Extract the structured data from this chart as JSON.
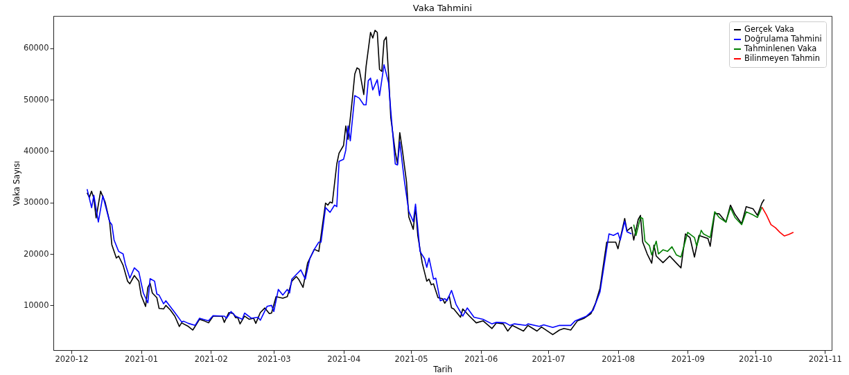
{
  "chart_data": {
    "type": "line",
    "title": "Vaka Tahmini",
    "xlabel": "Tarih",
    "ylabel": "Vaka Sayısı",
    "legend": "top right",
    "xlim": [
      "2020-11-23",
      "2021-11-04"
    ],
    "ylim": [
      1300,
      66300
    ],
    "xticks": [
      {
        "value": "2020-12-01",
        "label": "2020-12"
      },
      {
        "value": "2021-01-01",
        "label": "2021-01"
      },
      {
        "value": "2021-02-01",
        "label": "2021-02"
      },
      {
        "value": "2021-03-01",
        "label": "2021-03"
      },
      {
        "value": "2021-04-01",
        "label": "2021-04"
      },
      {
        "value": "2021-05-01",
        "label": "2021-05"
      },
      {
        "value": "2021-06-01",
        "label": "2021-06"
      },
      {
        "value": "2021-07-01",
        "label": "2021-07"
      },
      {
        "value": "2021-08-01",
        "label": "2021-08"
      },
      {
        "value": "2021-09-01",
        "label": "2021-09"
      },
      {
        "value": "2021-10-01",
        "label": "2021-10"
      },
      {
        "value": "2021-11-01",
        "label": "2021-11"
      }
    ],
    "yticks": [
      10000,
      20000,
      30000,
      40000,
      50000,
      60000
    ],
    "series": [
      {
        "name": "Gerçek Vaka",
        "color": "#000000",
        "x": [
          "2020-12-08",
          "2020-12-09",
          "2020-12-10",
          "2020-12-11",
          "2020-12-12",
          "2020-12-14",
          "2020-12-16",
          "2020-12-18",
          "2020-12-19",
          "2020-12-21",
          "2020-12-22",
          "2020-12-24",
          "2020-12-26",
          "2020-12-27",
          "2020-12-29",
          "2020-12-31",
          "2021-01-01",
          "2021-01-03",
          "2021-01-04",
          "2021-01-05",
          "2021-01-06",
          "2021-01-08",
          "2021-01-09",
          "2021-01-11",
          "2021-01-12",
          "2021-01-14",
          "2021-01-16",
          "2021-01-18",
          "2021-01-19",
          "2021-01-22",
          "2021-01-24",
          "2021-01-27",
          "2021-01-29",
          "2021-01-31",
          "2021-02-02",
          "2021-02-06",
          "2021-02-07",
          "2021-02-09",
          "2021-02-11",
          "2021-02-12",
          "2021-02-13",
          "2021-02-14",
          "2021-02-16",
          "2021-02-18",
          "2021-02-20",
          "2021-02-21",
          "2021-02-23",
          "2021-02-25",
          "2021-02-27",
          "2021-02-28",
          "2021-03-02",
          "2021-03-04",
          "2021-03-05",
          "2021-03-07",
          "2021-03-09",
          "2021-03-11",
          "2021-03-12",
          "2021-03-14",
          "2021-03-16",
          "2021-03-18",
          "2021-03-19",
          "2021-03-21",
          "2021-03-22",
          "2021-03-24",
          "2021-03-25",
          "2021-03-26",
          "2021-03-27",
          "2021-03-29",
          "2021-03-30",
          "2021-04-01",
          "2021-04-02",
          "2021-04-03",
          "2021-04-05",
          "2021-04-06",
          "2021-04-07",
          "2021-04-08",
          "2021-04-10",
          "2021-04-11",
          "2021-04-13",
          "2021-04-14",
          "2021-04-15",
          "2021-04-16",
          "2021-04-17",
          "2021-04-18",
          "2021-04-19",
          "2021-04-20",
          "2021-04-21",
          "2021-04-22",
          "2021-04-24",
          "2021-04-25",
          "2021-04-26",
          "2021-04-27",
          "2021-04-29",
          "2021-04-30",
          "2021-05-02",
          "2021-05-03",
          "2021-05-04",
          "2021-05-06",
          "2021-05-08",
          "2021-05-09",
          "2021-05-10",
          "2021-05-11",
          "2021-05-13",
          "2021-05-15",
          "2021-05-16",
          "2021-05-18",
          "2021-05-19",
          "2021-05-20",
          "2021-05-23",
          "2021-05-24",
          "2021-05-27",
          "2021-05-30",
          "2021-06-02",
          "2021-06-06",
          "2021-06-08",
          "2021-06-11",
          "2021-06-13",
          "2021-06-15",
          "2021-06-20",
          "2021-06-22",
          "2021-06-26",
          "2021-06-28",
          "2021-07-03",
          "2021-07-06",
          "2021-07-08",
          "2021-07-11",
          "2021-07-14",
          "2021-07-17",
          "2021-07-20",
          "2021-07-22",
          "2021-07-24",
          "2021-07-27",
          "2021-07-31",
          "2021-08-01",
          "2021-08-04",
          "2021-08-05",
          "2021-08-07",
          "2021-08-08",
          "2021-08-10",
          "2021-08-11",
          "2021-08-12",
          "2021-08-14",
          "2021-08-16",
          "2021-08-17",
          "2021-08-18",
          "2021-08-21",
          "2021-08-24",
          "2021-08-27",
          "2021-08-29",
          "2021-08-31",
          "2021-09-02",
          "2021-09-04",
          "2021-09-06",
          "2021-09-10",
          "2021-09-11",
          "2021-09-13",
          "2021-09-15",
          "2021-09-18",
          "2021-09-20",
          "2021-09-22",
          "2021-09-25",
          "2021-09-27",
          "2021-09-30",
          "2021-10-02",
          "2021-10-04",
          "2021-10-05"
        ],
        "values": [
          31900,
          31000,
          32200,
          30800,
          27000,
          32200,
          30100,
          26300,
          21800,
          19200,
          19600,
          17800,
          14700,
          14200,
          15800,
          14700,
          12000,
          9800,
          13500,
          14300,
          12400,
          11500,
          9400,
          9300,
          10000,
          9100,
          7900,
          5900,
          6600,
          5900,
          5200,
          7300,
          7000,
          6600,
          7900,
          7900,
          6700,
          8600,
          8400,
          7600,
          7600,
          6400,
          7900,
          7300,
          7500,
          6500,
          8600,
          9500,
          8400,
          8500,
          11700,
          11500,
          11400,
          11700,
          14700,
          15600,
          15100,
          13500,
          18200,
          20000,
          20900,
          20500,
          23600,
          29900,
          29500,
          30100,
          29900,
          37500,
          39600,
          41100,
          44900,
          42300,
          50500,
          55000,
          56200,
          55900,
          51000,
          56400,
          63100,
          62000,
          63500,
          63100,
          55900,
          55500,
          61500,
          62200,
          55000,
          46500,
          39800,
          37500,
          43600,
          40700,
          34000,
          27200,
          24800,
          29100,
          23600,
          18200,
          14700,
          15100,
          14000,
          14200,
          11500,
          11300,
          10400,
          11800,
          9500,
          9300,
          7700,
          9300,
          7900,
          6600,
          7000,
          5500,
          6600,
          6400,
          5000,
          6100,
          5000,
          6100,
          5000,
          5800,
          4300,
          5200,
          5500,
          5200,
          7000,
          7500,
          8400,
          10400,
          13300,
          22300,
          22300,
          21000,
          26900,
          24500,
          25200,
          22700,
          26700,
          27500,
          22300,
          20000,
          18200,
          21700,
          19600,
          18300,
          19600,
          18200,
          17300,
          23900,
          23200,
          19400,
          23600,
          23000,
          21500,
          27900,
          27800,
          26200,
          29500,
          27700,
          25900,
          29200,
          28800,
          27500,
          29900,
          30600
        ]
      },
      {
        "name": "Doğrulama Tahmini",
        "color": "#0000ff",
        "x": [
          "2020-12-08",
          "2020-12-10",
          "2020-12-11",
          "2020-12-13",
          "2020-12-15",
          "2020-12-18",
          "2020-12-19",
          "2020-12-20",
          "2020-12-22",
          "2020-12-24",
          "2020-12-25",
          "2020-12-27",
          "2020-12-29",
          "2020-12-31",
          "2021-01-02",
          "2021-01-04",
          "2021-01-05",
          "2021-01-07",
          "2021-01-08",
          "2021-01-09",
          "2021-01-11",
          "2021-01-12",
          "2021-01-16",
          "2021-01-19",
          "2021-01-20",
          "2021-01-22",
          "2021-01-25",
          "2021-01-27",
          "2021-01-31",
          "2021-02-02",
          "2021-02-07",
          "2021-02-08",
          "2021-02-10",
          "2021-02-12",
          "2021-02-15",
          "2021-02-16",
          "2021-02-19",
          "2021-02-22",
          "2021-02-23",
          "2021-02-26",
          "2021-02-28",
          "2021-03-01",
          "2021-03-03",
          "2021-03-05",
          "2021-03-07",
          "2021-03-08",
          "2021-03-09",
          "2021-03-11",
          "2021-03-13",
          "2021-03-15",
          "2021-03-17",
          "2021-03-19",
          "2021-03-21",
          "2021-03-22",
          "2021-03-24",
          "2021-03-26",
          "2021-03-28",
          "2021-03-29",
          "2021-03-30",
          "2021-04-01",
          "2021-04-02",
          "2021-04-03",
          "2021-04-04",
          "2021-04-06",
          "2021-04-08",
          "2021-04-10",
          "2021-04-11",
          "2021-04-12",
          "2021-04-13",
          "2021-04-14",
          "2021-04-16",
          "2021-04-17",
          "2021-04-19",
          "2021-04-21",
          "2021-04-22",
          "2021-04-24",
          "2021-04-25",
          "2021-04-26",
          "2021-04-28",
          "2021-04-30",
          "2021-05-02",
          "2021-05-03",
          "2021-05-05",
          "2021-05-07",
          "2021-05-08",
          "2021-05-09",
          "2021-05-11",
          "2021-05-12",
          "2021-05-14",
          "2021-05-16",
          "2021-05-17",
          "2021-05-19",
          "2021-05-21",
          "2021-05-24",
          "2021-05-26",
          "2021-05-29",
          "2021-06-02",
          "2021-06-06",
          "2021-06-08",
          "2021-06-12",
          "2021-06-14",
          "2021-06-16",
          "2021-06-21",
          "2021-06-22",
          "2021-06-27",
          "2021-06-29",
          "2021-07-03",
          "2021-07-06",
          "2021-07-11",
          "2021-07-13",
          "2021-07-18",
          "2021-07-21",
          "2021-07-24",
          "2021-07-28",
          "2021-07-30",
          "2021-08-01",
          "2021-08-02",
          "2021-08-04",
          "2021-08-05",
          "2021-08-07"
        ],
        "values": [
          32600,
          29000,
          31400,
          26200,
          31300,
          26300,
          25700,
          22700,
          20500,
          20000,
          18000,
          15300,
          17300,
          16500,
          12400,
          10500,
          15200,
          14700,
          12200,
          12000,
          10300,
          10900,
          8600,
          6800,
          6900,
          6500,
          6100,
          7500,
          7000,
          8000,
          7900,
          7500,
          8800,
          7900,
          7300,
          8500,
          7500,
          7700,
          7100,
          9800,
          10000,
          8800,
          13100,
          12000,
          13100,
          12400,
          15100,
          16000,
          16900,
          15100,
          19100,
          20900,
          22300,
          22300,
          29000,
          28100,
          29500,
          29200,
          38000,
          38400,
          40200,
          44900,
          42000,
          50800,
          50300,
          49000,
          49000,
          53700,
          54200,
          51900,
          53900,
          50800,
          56800,
          53300,
          47900,
          37500,
          37300,
          41800,
          34400,
          28300,
          26300,
          29700,
          20500,
          19100,
          17400,
          19200,
          15100,
          15300,
          10900,
          11300,
          10900,
          12900,
          10200,
          7900,
          9500,
          7700,
          7300,
          6400,
          6700,
          6600,
          6100,
          6400,
          6100,
          6400,
          5900,
          6200,
          5700,
          6100,
          6100,
          7000,
          7900,
          9100,
          12600,
          23900,
          23600,
          24100,
          22700,
          26400,
          24300,
          23900
        ]
      },
      {
        "name": "Tahminlenen Vaka",
        "color": "#008000",
        "x": [
          "2021-08-08",
          "2021-08-09",
          "2021-08-11",
          "2021-08-12",
          "2021-08-13",
          "2021-08-15",
          "2021-08-16",
          "2021-08-18",
          "2021-08-19",
          "2021-08-21",
          "2021-08-23",
          "2021-08-25",
          "2021-08-27",
          "2021-08-29",
          "2021-09-01",
          "2021-09-04",
          "2021-09-05",
          "2021-09-07",
          "2021-09-08",
          "2021-09-11",
          "2021-09-13",
          "2021-09-15",
          "2021-09-18",
          "2021-09-20",
          "2021-09-22",
          "2021-09-25",
          "2021-09-27",
          "2021-09-30",
          "2021-10-02",
          "2021-10-04"
        ],
        "values": [
          25700,
          23600,
          27100,
          26900,
          22500,
          21600,
          19800,
          22500,
          20000,
          20800,
          20500,
          21400,
          19800,
          19400,
          24200,
          23200,
          21500,
          24600,
          23900,
          23200,
          28200,
          27100,
          26200,
          29000,
          27100,
          25700,
          28200,
          27600,
          27100,
          29100
        ]
      },
      {
        "name": "Bilinmeyen Tahmin",
        "color": "#ff0000",
        "x": [
          "2021-10-04",
          "2021-10-06",
          "2021-10-08",
          "2021-10-10",
          "2021-10-12",
          "2021-10-14",
          "2021-10-16",
          "2021-10-18"
        ],
        "values": [
          29100,
          27600,
          25700,
          25100,
          24200,
          23500,
          23800,
          24200
        ]
      }
    ]
  }
}
